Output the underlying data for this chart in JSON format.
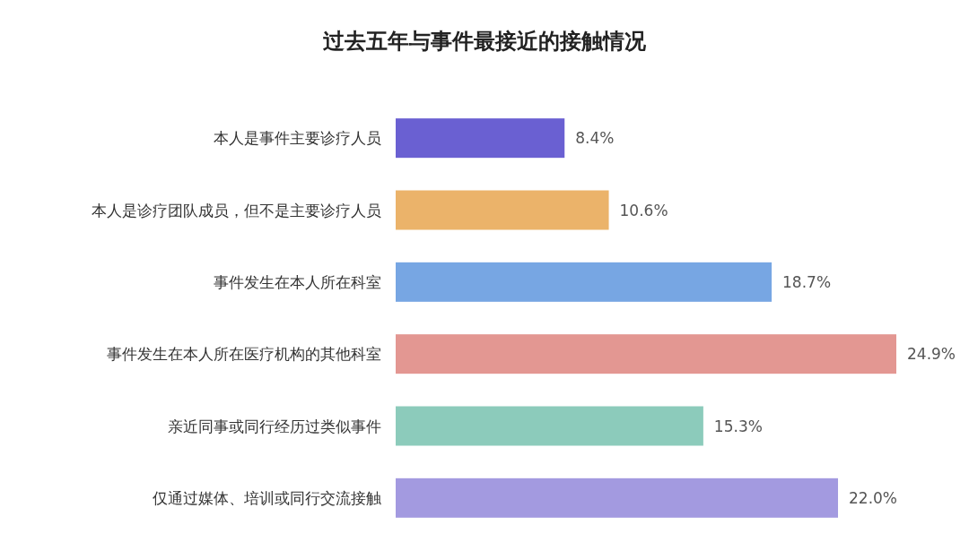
{
  "chart_data": {
    "type": "bar",
    "orientation": "horizontal",
    "title": "过去五年与事件最接近的接触情况",
    "categories": [
      "本人是事件主要诊疗人员",
      "本人是诊疗团队成员，但不是主要诊疗人员",
      "事件发生在本人所在科室",
      "事件发生在本人所在医疗机构的其他科室",
      "亲近同事或同行经历过类似事件",
      "仅通过媒体、培训或同行交流接触"
    ],
    "values": [
      8.4,
      10.6,
      18.7,
      24.9,
      15.3,
      22.0
    ],
    "value_labels": [
      "8.4%",
      "10.6%",
      "18.7%",
      "24.9%",
      "15.3%",
      "22.0%"
    ],
    "colors": [
      "#6a60d2",
      "#ebb36a",
      "#77a6e3",
      "#e39792",
      "#8ccbbb",
      "#a39ae0"
    ]
  }
}
